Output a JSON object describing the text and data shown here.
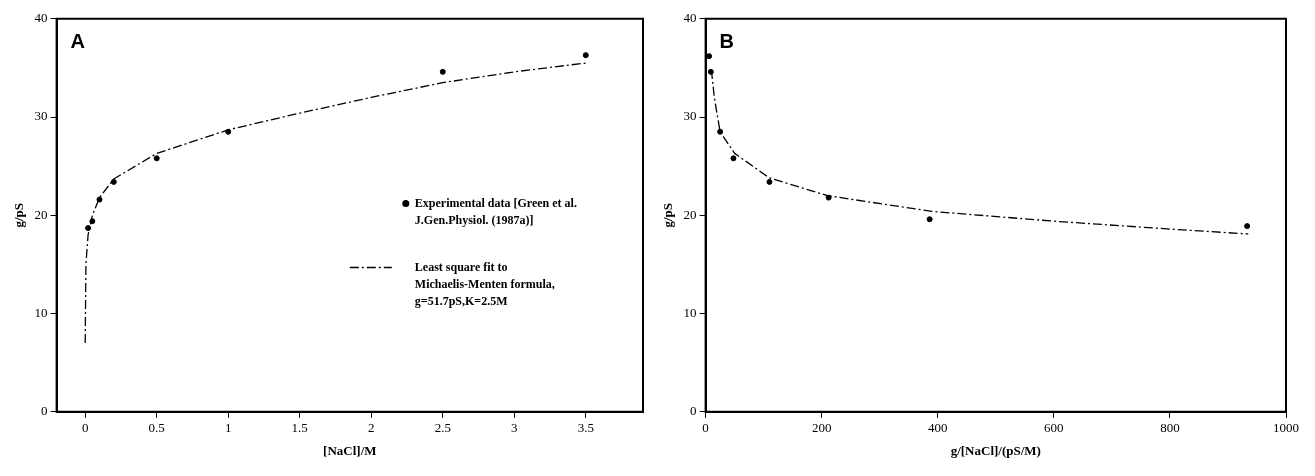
{
  "chart_data": [
    {
      "type": "scatter",
      "title": "A",
      "xlabel": "[NaCl]/M",
      "ylabel": "g/pS",
      "xlim": [
        -0.2,
        3.9
      ],
      "xticks": [
        0,
        0.5,
        1,
        1.5,
        2,
        2.5,
        3,
        3.5
      ],
      "ylim": [
        0,
        40
      ],
      "yticks": [
        0,
        10,
        20,
        30,
        40
      ],
      "grid": false,
      "legend": "right",
      "series": [
        {
          "name": "Experimental data [Green et al. J.Gen.Physiol. (1987a)]",
          "color": "#000000",
          "marker": "circle",
          "x": [
            0.02,
            0.05,
            0.1,
            0.2,
            0.5,
            1,
            2.5,
            3.5
          ],
          "values": [
            18.7,
            19.4,
            21.6,
            23.4,
            25.8,
            28.5,
            34.6,
            36.3
          ]
        },
        {
          "name": "Least square fit to Michaelis-Menten formula, g=51.7pS,K=2.5M",
          "type": "line",
          "color": "#000000",
          "marker": "none",
          "line_style": "dashed",
          "x": [
            0,
            0.005,
            0.02,
            0.05,
            0.1,
            0.2,
            0.5,
            1,
            1.5,
            2,
            2.5,
            3,
            3.5
          ],
          "values": [
            7,
            15,
            18,
            20,
            21.8,
            23.7,
            26.3,
            28.7,
            30.4,
            32,
            33.5,
            34.6,
            35.5
          ]
        }
      ]
    },
    {
      "type": "scatter",
      "title": "B",
      "xlabel": "g/[NaCl]/(pS/M)",
      "ylabel": "g/pS",
      "xlim": [
        0,
        1000
      ],
      "xticks": [
        0,
        200,
        400,
        600,
        800,
        1000
      ],
      "ylim": [
        0,
        40
      ],
      "yticks": [
        0,
        10,
        20,
        30,
        40
      ],
      "grid": false,
      "legend": false,
      "series": [
        {
          "color": "#000000",
          "marker": "circle",
          "x": [
            6,
            9,
            25,
            48,
            110,
            212,
            386,
            933
          ],
          "values": [
            36.2,
            34.6,
            28.5,
            25.8,
            23.4,
            21.8,
            19.6,
            18.9
          ]
        },
        {
          "type": "line",
          "color": "#000000",
          "marker": "none",
          "line_style": "dashed",
          "x": [
            10,
            15,
            25,
            50,
            110,
            210,
            390,
            600,
            800,
            935
          ],
          "values": [
            34.8,
            32,
            28.5,
            26.3,
            23.8,
            22,
            20.4,
            19.4,
            18.6,
            18.1
          ]
        }
      ]
    }
  ]
}
